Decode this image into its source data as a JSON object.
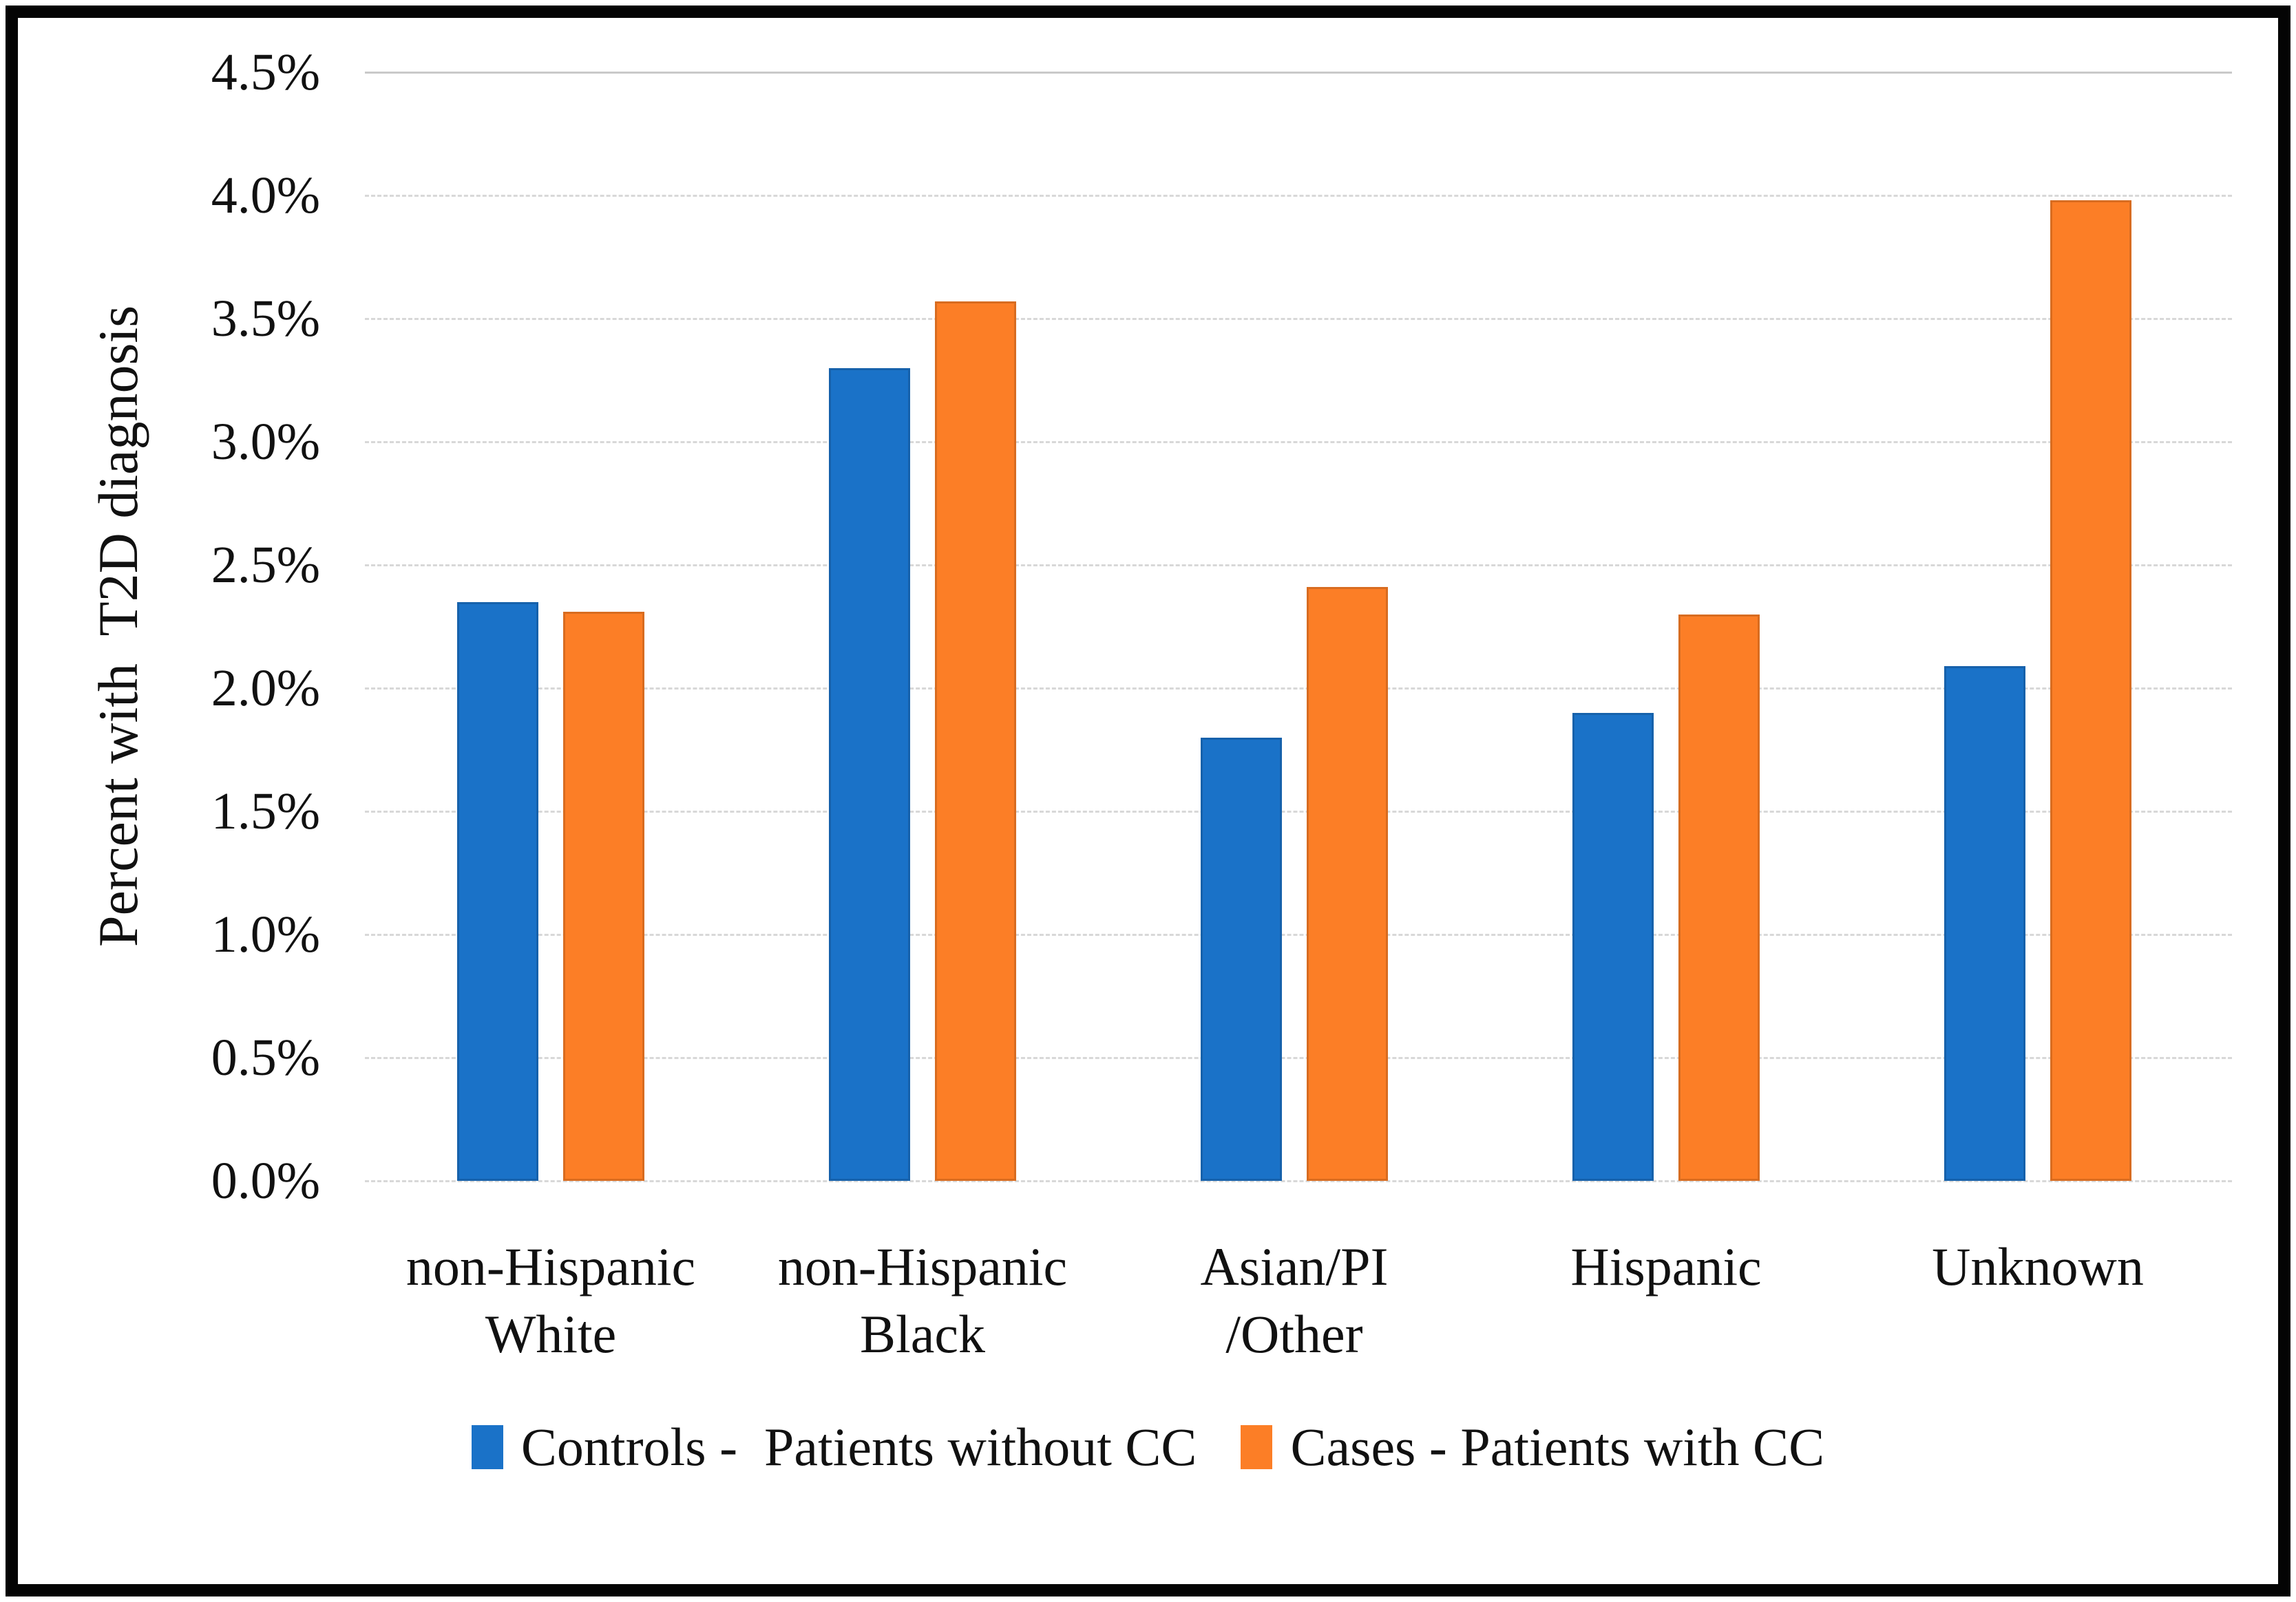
{
  "figure": {
    "background_color": "#ffffff",
    "border_color": "#040404",
    "gridline_color": "#d8d8d8"
  },
  "chart_data": {
    "type": "bar",
    "title": "",
    "xlabel": "",
    "ylabel": "Percent with  T2D diagnosis",
    "categories": [
      "non-Hispanic\nWhite",
      "non-Hispanic\nBlack",
      "Asian/PI\n/Other",
      "Hispanic",
      "Unknown"
    ],
    "series": [
      {
        "name": "Controls -  Patients without CC",
        "color": "#1A72C8",
        "values": [
          2.35,
          3.3,
          1.8,
          1.9,
          2.09
        ]
      },
      {
        "name": "Cases - Patients with CC",
        "color": "#FC7E26",
        "values": [
          2.31,
          3.57,
          2.41,
          2.3,
          3.98
        ]
      }
    ],
    "value_suffix": "%",
    "ylim": [
      0,
      4.5
    ],
    "ytick_step": 0.5,
    "yticks": [
      "0.0%",
      "0.5%",
      "1.0%",
      "1.5%",
      "2.0%",
      "2.5%",
      "3.0%",
      "3.5%",
      "4.0%",
      "4.5%"
    ],
    "grid": "horizontal-dashed",
    "legend_position": "bottom"
  }
}
